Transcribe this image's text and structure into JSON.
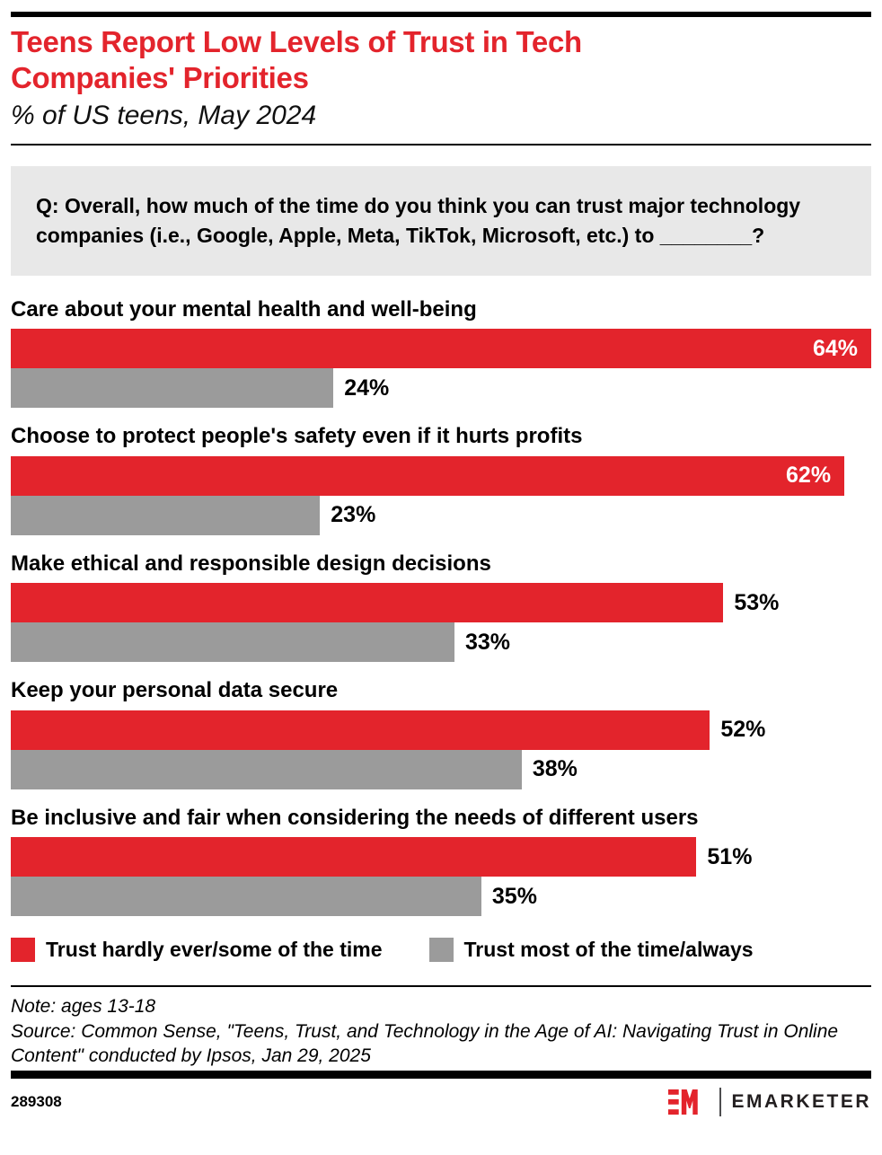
{
  "header": {
    "title": "Teens Report Low Levels of Trust in Tech Companies' Priorities",
    "subtitle": "% of US teens, May 2024"
  },
  "question": {
    "text": "Q: Overall, how much of the time do you think you can trust major technology companies (i.e., Google, Apple, Meta, TikTok, Microsoft, etc.) to ________?"
  },
  "chart_data": {
    "type": "bar",
    "orientation": "horizontal",
    "categories": [
      "Care about your mental health and well-being",
      "Choose to protect people's safety even if it hurts profits",
      "Make ethical and responsible design decisions",
      "Keep your personal data secure",
      "Be inclusive and fair when considering the needs of different users"
    ],
    "series": [
      {
        "name": "Trust hardly ever/some of the time",
        "color": "#E3242C",
        "values": [
          64,
          62,
          53,
          52,
          51
        ]
      },
      {
        "name": "Trust most of the time/always",
        "color": "#9B9B9B",
        "values": [
          24,
          23,
          33,
          38,
          35
        ]
      }
    ],
    "value_suffix": "%",
    "xlim": [
      0,
      64
    ],
    "grid": false,
    "legend_position": "bottom"
  },
  "palette": {
    "accent_red": "#E3242C",
    "bar_gray": "#9B9B9B",
    "question_box_bg": "#E8E8E8",
    "rule_black": "#000000"
  },
  "footnote": {
    "note": "Note: ages 13-18",
    "source": "Source: Common Sense, \"Teens, Trust, and Technology in the Age of AI: Navigating Trust in Online Content\" conducted by Ipsos, Jan 29, 2025"
  },
  "footer": {
    "chart_number": "289308",
    "brand": "EMARKETER"
  }
}
